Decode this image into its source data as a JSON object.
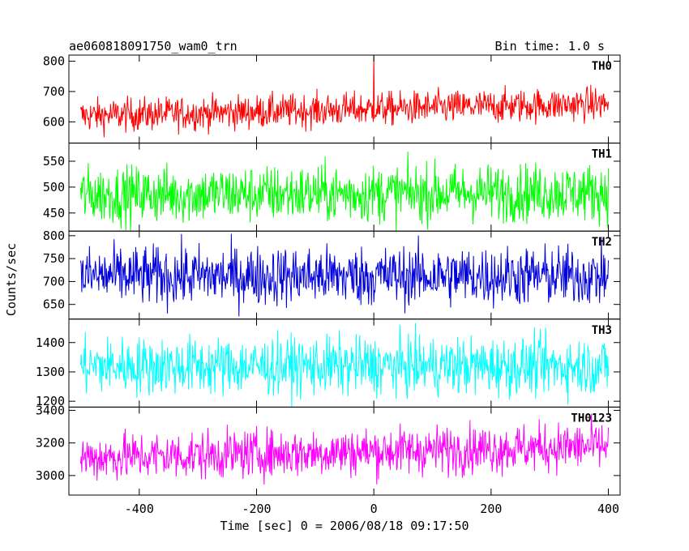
{
  "header": {
    "title": "ae060818091750_wam0_trn",
    "bin_time": "Bin time: 1.0 s"
  },
  "chart_data": {
    "type": "line",
    "xlabel": "Time [sec] 0 = 2006/08/18 09:17:50",
    "ylabel": "Counts/sec",
    "xlim": [
      -520,
      420
    ],
    "x_ticks": [
      -400,
      -200,
      0,
      200,
      400
    ],
    "x_range": [
      -500,
      400
    ],
    "bin_time_s": 1.0,
    "panels": [
      {
        "name": "TH0",
        "color": "#ff0000",
        "ylim": [
          530,
          820
        ],
        "y_ticks": [
          600,
          700,
          800
        ],
        "mean_start": 620,
        "mean_end": 660,
        "spread": 28,
        "spikes": [
          {
            "x": 0,
            "y": 820
          }
        ]
      },
      {
        "name": "TH1",
        "color": "#00ff00",
        "ylim": [
          415,
          585
        ],
        "y_ticks": [
          450,
          500,
          550
        ],
        "mean_start": 485,
        "mean_end": 490,
        "spread": 28,
        "spikes": []
      },
      {
        "name": "TH2",
        "color": "#0000dd",
        "ylim": [
          618,
          810
        ],
        "y_ticks": [
          650,
          700,
          750,
          800
        ],
        "mean_start": 712,
        "mean_end": 712,
        "spread": 33,
        "spikes": []
      },
      {
        "name": "TH3",
        "color": "#00ffff",
        "ylim": [
          1180,
          1480
        ],
        "y_ticks": [
          1200,
          1300,
          1400
        ],
        "mean_start": 1320,
        "mean_end": 1320,
        "spread": 50,
        "spikes": []
      },
      {
        "name": "TH0123",
        "color": "#ff00ff",
        "ylim": [
          2880,
          3420
        ],
        "y_ticks": [
          3000,
          3200,
          3400
        ],
        "mean_start": 3110,
        "mean_end": 3180,
        "spread": 75,
        "spikes": []
      }
    ]
  }
}
